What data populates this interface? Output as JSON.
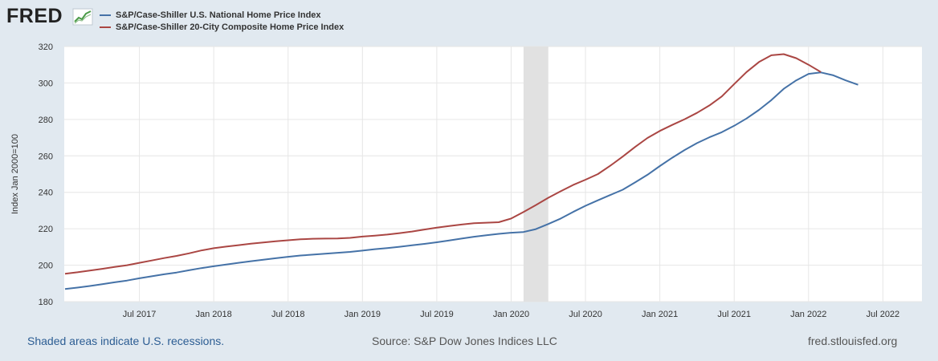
{
  "branding": {
    "logo_text": "FRED"
  },
  "legend": {
    "items": [
      {
        "label": "S&P/Case-Shiller U.S. National Home Price Index",
        "color": "#4572a7"
      },
      {
        "label": "S&P/Case-Shiller 20-City Composite Home Price Index",
        "color": "#aa4643"
      }
    ]
  },
  "footer": {
    "recession_note": "Shaded areas indicate U.S. recessions.",
    "source": "Source: S&P Dow Jones Indices LLC",
    "site": "fred.stlouisfed.org"
  },
  "chart_data": {
    "type": "line",
    "ylabel": "Index Jan 2000=100",
    "xlabel": "",
    "ylim": [
      180,
      320
    ],
    "yticks": [
      180,
      200,
      220,
      240,
      260,
      280,
      300,
      320
    ],
    "grid": true,
    "start_month": "2017-01",
    "xticks": [
      {
        "label": "Jul 2017",
        "index": 6
      },
      {
        "label": "Jan 2018",
        "index": 12
      },
      {
        "label": "Jul 2018",
        "index": 18
      },
      {
        "label": "Jan 2019",
        "index": 24
      },
      {
        "label": "Jul 2019",
        "index": 30
      },
      {
        "label": "Jan 2020",
        "index": 36
      },
      {
        "label": "Jul 2020",
        "index": 42
      },
      {
        "label": "Jan 2021",
        "index": 48
      },
      {
        "label": "Jul 2021",
        "index": 54
      },
      {
        "label": "Jan 2022",
        "index": 60
      },
      {
        "label": "Jul 2022",
        "index": 66
      }
    ],
    "recession": {
      "start_index": 37,
      "end_index": 39
    },
    "series": [
      {
        "name": "S&P/Case-Shiller U.S. National Home Price Index",
        "color": "#4572a7",
        "values": [
          186.9,
          187.7,
          188.6,
          189.6,
          190.6,
          191.6,
          192.8,
          193.9,
          195.0,
          196.0,
          197.2,
          198.4,
          199.4,
          200.4,
          201.3,
          202.2,
          203.0,
          203.8,
          204.6,
          205.3,
          205.8,
          206.3,
          206.8,
          207.3,
          208.0,
          208.8,
          209.4,
          210.1,
          210.9,
          211.7,
          212.6,
          213.6,
          214.6,
          215.6,
          216.4,
          217.2,
          217.8,
          218.2,
          219.8,
          222.6,
          225.6,
          229.2,
          232.6,
          235.6,
          238.5,
          241.4,
          245.4,
          249.6,
          254.4,
          259.0,
          263.2,
          267.0,
          270.2,
          273.0,
          276.5,
          280.5,
          285.2,
          290.6,
          296.8,
          301.4,
          305.0,
          305.8,
          304.2,
          301.4,
          299.0
        ]
      },
      {
        "name": "S&P/Case-Shiller 20-City Composite Home Price Index",
        "color": "#aa4643",
        "values": [
          195.3,
          196.1,
          197.1,
          198.0,
          199.0,
          200.0,
          201.3,
          202.6,
          203.9,
          205.1,
          206.5,
          208.1,
          209.3,
          210.2,
          211.0,
          211.8,
          212.5,
          213.1,
          213.7,
          214.2,
          214.5,
          214.6,
          214.7,
          215.0,
          215.7,
          216.2,
          216.8,
          217.6,
          218.5,
          219.6,
          220.6,
          221.5,
          222.3,
          223.0,
          223.3,
          223.6,
          225.6,
          229.2,
          233.0,
          237.0,
          240.6,
          244.0,
          246.9,
          250.0,
          254.6,
          259.6,
          264.9,
          269.8,
          273.7,
          277.0,
          280.1,
          283.6,
          287.7,
          292.6,
          299.4,
          306.0,
          311.5,
          315.2,
          315.8,
          313.6,
          310.0,
          306.0
        ]
      }
    ]
  }
}
